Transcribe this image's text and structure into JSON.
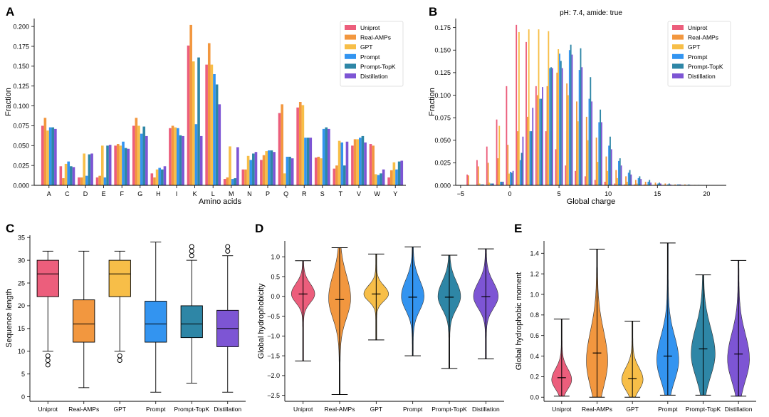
{
  "colors": {
    "series": [
      "#EC5E7C",
      "#F2973F",
      "#F7BE48",
      "#3394F0",
      "#2E86A6",
      "#7D55D4"
    ],
    "axis": "#000000"
  },
  "series_names": [
    "Uniprot",
    "Real-AMPs",
    "GPT",
    "Prompt",
    "Prompt-TopK",
    "Distillation"
  ],
  "chart_data": [
    {
      "id": "A",
      "type": "bar",
      "panel_label": "A",
      "title": "",
      "xlabel": "Amino acids",
      "ylabel": "Fraction",
      "ylim": [
        0,
        0.21
      ],
      "yticks": [
        0.0,
        0.025,
        0.05,
        0.075,
        0.1,
        0.125,
        0.15,
        0.175,
        0.2
      ],
      "ytick_labels": [
        "0.000",
        "0.025",
        "0.050",
        "0.075",
        "0.100",
        "0.125",
        "0.150",
        "0.175",
        "0.200"
      ],
      "legend": "top-right",
      "categories": [
        "A",
        "C",
        "D",
        "E",
        "F",
        "G",
        "H",
        "I",
        "K",
        "L",
        "M",
        "N",
        "P",
        "Q",
        "R",
        "S",
        "T",
        "V",
        "W",
        "Y"
      ],
      "series": [
        {
          "name": "Uniprot",
          "values": [
            0.075,
            0.024,
            0.01,
            0.01,
            0.05,
            0.075,
            0.015,
            0.072,
            0.176,
            0.152,
            0.008,
            0.02,
            0.032,
            0.091,
            0.098,
            0.035,
            0.021,
            0.05,
            0.052,
            0.01
          ]
        },
        {
          "name": "Real-AMPs",
          "values": [
            0.085,
            0.009,
            0.01,
            0.012,
            0.052,
            0.085,
            0.01,
            0.075,
            0.202,
            0.179,
            0.01,
            0.02,
            0.038,
            0.102,
            0.105,
            0.036,
            0.025,
            0.058,
            0.05,
            0.019
          ]
        },
        {
          "name": "GPT",
          "values": [
            0.069,
            0.027,
            0.04,
            0.05,
            0.05,
            0.075,
            0.02,
            0.073,
            0.156,
            0.152,
            0.049,
            0.037,
            0.043,
            0.015,
            0.101,
            0.034,
            0.056,
            0.058,
            0.014,
            0.029
          ]
        },
        {
          "name": "Prompt",
          "values": [
            0.073,
            0.03,
            0.012,
            0.01,
            0.055,
            0.065,
            0.022,
            0.072,
            0.077,
            0.14,
            0.008,
            0.032,
            0.044,
            0.036,
            0.06,
            0.071,
            0.054,
            0.06,
            0.013,
            0.02
          ]
        },
        {
          "name": "Prompt-TopK",
          "values": [
            0.073,
            0.024,
            0.039,
            0.05,
            0.047,
            0.074,
            0.02,
            0.063,
            0.161,
            0.127,
            0.009,
            0.04,
            0.044,
            0.036,
            0.06,
            0.073,
            0.025,
            0.062,
            0.015,
            0.03
          ]
        },
        {
          "name": "Distillation",
          "values": [
            0.071,
            0.023,
            0.04,
            0.051,
            0.046,
            0.062,
            0.024,
            0.062,
            0.062,
            0.102,
            0.048,
            0.042,
            0.042,
            0.034,
            0.06,
            0.071,
            0.055,
            0.054,
            0.02,
            0.031
          ]
        }
      ]
    },
    {
      "id": "B",
      "type": "bar",
      "panel_label": "B",
      "title": "pH: 7.4,  amide: true",
      "xlabel": "Global charge",
      "ylabel": "Fraction",
      "xlim": [
        -5.5,
        22
      ],
      "xticks": [
        -5,
        0,
        5,
        10,
        15,
        20
      ],
      "ylim": [
        0,
        0.185
      ],
      "yticks": [
        0.0,
        0.025,
        0.05,
        0.075,
        0.1,
        0.125,
        0.15,
        0.175
      ],
      "ytick_labels": [
        "0.000",
        "0.025",
        "0.050",
        "0.075",
        "0.100",
        "0.125",
        "0.150",
        "0.175"
      ],
      "legend": "top-right",
      "x": [
        -4,
        -3,
        -2,
        -1,
        0,
        1,
        2,
        3,
        4,
        5,
        6,
        7,
        8,
        9,
        10,
        11,
        12,
        13,
        14,
        15,
        16,
        17,
        18,
        19,
        20
      ],
      "series": [
        {
          "name": "Uniprot",
          "values": [
            0.012,
            0.028,
            0.043,
            0.073,
            0.11,
            0.178,
            0.159,
            0.11,
            0.06,
            0.04,
            0.022,
            0.016,
            0.01,
            0.006,
            0.004,
            0.002,
            0.001,
            0.001,
            0.001,
            0.0005,
            0.0005,
            0.0003,
            0.0002,
            0.0002,
            0.0001
          ]
        },
        {
          "name": "Real-AMPs",
          "values": [
            0.011,
            0.021,
            0.025,
            0.03,
            0.045,
            0.06,
            0.076,
            0.1,
            0.11,
            0.125,
            0.113,
            0.093,
            0.076,
            0.053,
            0.032,
            0.017,
            0.01,
            0.006,
            0.004,
            0.003,
            0.002,
            0.001,
            0.001,
            0.0005,
            0.0003
          ]
        },
        {
          "name": "GPT",
          "values": [
            0.0,
            0.002,
            0.003,
            0.066,
            0.013,
            0.17,
            0.173,
            0.173,
            0.171,
            0.151,
            0.1,
            0.071,
            0.05,
            0.026,
            0.016,
            0.008,
            0.004,
            0.002,
            0.001,
            0.001,
            0.0005,
            0.0003,
            0.0002,
            0.0001,
            0.0001
          ]
        },
        {
          "name": "Prompt",
          "values": [
            0.0,
            0.001,
            0.002,
            0.004,
            0.015,
            0.028,
            0.06,
            0.096,
            0.13,
            0.146,
            0.15,
            0.128,
            0.096,
            0.07,
            0.044,
            0.027,
            0.014,
            0.008,
            0.004,
            0.002,
            0.001,
            0.001,
            0.0005,
            0.0003,
            0.0002
          ]
        },
        {
          "name": "Prompt-TopK",
          "values": [
            0.0,
            0.001,
            0.002,
            0.004,
            0.014,
            0.036,
            0.06,
            0.096,
            0.131,
            0.138,
            0.156,
            0.152,
            0.12,
            0.084,
            0.054,
            0.03,
            0.017,
            0.01,
            0.006,
            0.003,
            0.002,
            0.001,
            0.001,
            0.0005,
            0.0003
          ]
        },
        {
          "name": "Distillation",
          "values": [
            0.0,
            0.001,
            0.002,
            0.004,
            0.016,
            0.054,
            0.086,
            0.109,
            0.13,
            0.13,
            0.145,
            0.131,
            0.093,
            0.07,
            0.04,
            0.022,
            0.012,
            0.007,
            0.003,
            0.002,
            0.001,
            0.001,
            0.0005,
            0.0003,
            0.0002
          ]
        }
      ]
    },
    {
      "id": "C",
      "type": "box",
      "panel_label": "C",
      "title": "",
      "xlabel": "",
      "ylabel": "Sequence length",
      "ylim": [
        -1,
        35.5
      ],
      "yticks": [
        0,
        5,
        10,
        15,
        20,
        25,
        30,
        35
      ],
      "categories": [
        "Uniprot",
        "Real-AMPs",
        "GPT",
        "Prompt",
        "Prompt-TopK",
        "Distillation"
      ],
      "boxes": [
        {
          "whislo": 10,
          "q1": 22,
          "med": 27,
          "q3": 30,
          "whishi": 32,
          "fliers": [
            7,
            8,
            9
          ]
        },
        {
          "whislo": 2,
          "q1": 12,
          "med": 16,
          "q3": 21.3,
          "whishi": 32,
          "fliers": []
        },
        {
          "whislo": 10,
          "q1": 22,
          "med": 27,
          "q3": 30,
          "whishi": 32,
          "fliers": [
            8,
            9
          ]
        },
        {
          "whislo": 1,
          "q1": 12,
          "med": 16,
          "q3": 21,
          "whishi": 34,
          "fliers": []
        },
        {
          "whislo": 3,
          "q1": 13,
          "med": 16,
          "q3": 20,
          "whishi": 30,
          "fliers": [
            31,
            32,
            33
          ]
        },
        {
          "whislo": 1,
          "q1": 11,
          "med": 15,
          "q3": 19,
          "whishi": 31,
          "fliers": [
            32,
            33
          ]
        }
      ]
    },
    {
      "id": "D",
      "type": "violin",
      "panel_label": "D",
      "title": "",
      "xlabel": "",
      "ylabel": "Global hydrophobicity",
      "ylim": [
        -2.65,
        1.4
      ],
      "yticks": [
        -2.5,
        -2.0,
        -1.5,
        -1.0,
        -0.5,
        0.0,
        0.5,
        1.0
      ],
      "ytick_labels": [
        "−2.5",
        "−2.0",
        "−1.5",
        "−1.0",
        "−0.5",
        "0.0",
        "0.5",
        "1.0"
      ],
      "categories": [
        "Uniprot",
        "Real-AMPs",
        "GPT",
        "Prompt",
        "Prompt-TopK",
        "Distillation"
      ],
      "violins": [
        {
          "min": -1.63,
          "max": 0.9,
          "med": 0.06,
          "center": 0.06,
          "spread": 0.22,
          "maxw": 0.34
        },
        {
          "min": -2.48,
          "max": 1.23,
          "med": -0.08,
          "center": -0.05,
          "spread": 0.5,
          "maxw": 0.32
        },
        {
          "min": -1.1,
          "max": 1.07,
          "med": 0.06,
          "center": 0.06,
          "spread": 0.18,
          "maxw": 0.36
        },
        {
          "min": -1.5,
          "max": 1.25,
          "med": -0.02,
          "center": 0.0,
          "spread": 0.35,
          "maxw": 0.33
        },
        {
          "min": -1.82,
          "max": 1.04,
          "med": -0.02,
          "center": 0.0,
          "spread": 0.32,
          "maxw": 0.33
        },
        {
          "min": -1.58,
          "max": 1.2,
          "med": -0.01,
          "center": 0.0,
          "spread": 0.3,
          "maxw": 0.36
        }
      ]
    },
    {
      "id": "E",
      "type": "violin",
      "panel_label": "E",
      "title": "",
      "xlabel": "",
      "ylabel": "Global hydrophobic moment",
      "ylim": [
        -0.04,
        1.52
      ],
      "yticks": [
        0.0,
        0.2,
        0.4,
        0.6,
        0.8,
        1.0,
        1.2,
        1.4
      ],
      "ytick_labels": [
        "0.0",
        "0.2",
        "0.4",
        "0.6",
        "0.8",
        "1.0",
        "1.2",
        "1.4"
      ],
      "categories": [
        "Uniprot",
        "Real-AMPs",
        "GPT",
        "Prompt",
        "Prompt-TopK",
        "Distillation"
      ],
      "violins": [
        {
          "min": 0.01,
          "max": 0.76,
          "med": 0.19,
          "center": 0.17,
          "spread": 0.09,
          "maxw": 0.3
        },
        {
          "min": 0.0,
          "max": 1.44,
          "med": 0.43,
          "center": 0.35,
          "spread": 0.25,
          "maxw": 0.32
        },
        {
          "min": 0.0,
          "max": 0.74,
          "med": 0.18,
          "center": 0.17,
          "spread": 0.1,
          "maxw": 0.32
        },
        {
          "min": 0.02,
          "max": 1.5,
          "med": 0.4,
          "center": 0.36,
          "spread": 0.2,
          "maxw": 0.33
        },
        {
          "min": 0.02,
          "max": 1.19,
          "med": 0.47,
          "center": 0.42,
          "spread": 0.22,
          "maxw": 0.36
        },
        {
          "min": 0.01,
          "max": 1.33,
          "med": 0.42,
          "center": 0.37,
          "spread": 0.21,
          "maxw": 0.33
        }
      ]
    }
  ]
}
